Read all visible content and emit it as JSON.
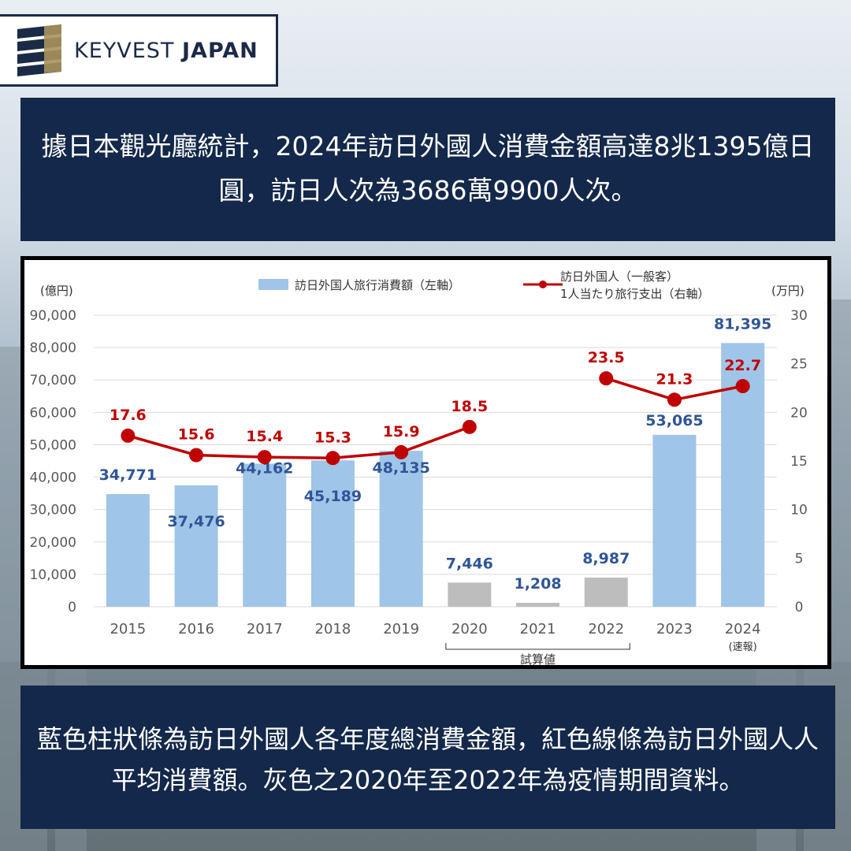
{
  "logo": {
    "brand_light": "KEYVEST ",
    "brand_bold": "JAPAN"
  },
  "headline": "據日本觀光廳統計，2024年訪日外國人消費金額高達8兆1395億日圓，訪日人次為3686萬9900人次。",
  "footnote": "藍色柱狀條為訪日外國人各年度總消費金額，紅色線條為訪日外國人人平均消費額。灰色之2020年至2022年為疫情期間資料。",
  "colors": {
    "navy": "#13284a",
    "bar_blue": "#9fc5e8",
    "bar_gray": "#bdbdbd",
    "line_red": "#c00000",
    "label_blue": "#2f5597",
    "label_red": "#c00000"
  },
  "chart_data": {
    "type": "bar",
    "categories": [
      "2015",
      "2016",
      "2017",
      "2018",
      "2019",
      "2020",
      "2021",
      "2022",
      "2023",
      "2024"
    ],
    "category_sublabels": {
      "2024": "(速報)"
    },
    "bracket_label": "試算値",
    "bracket_range": [
      "2020",
      "2022"
    ],
    "left_axis_unit": "(億円)",
    "right_axis_unit": "(万円)",
    "ylim_left": [
      0,
      90000
    ],
    "yticks_left": [
      "0",
      "10,000",
      "20,000",
      "30,000",
      "40,000",
      "50,000",
      "60,000",
      "70,000",
      "80,000",
      "90,000"
    ],
    "ylim_right": [
      0,
      30
    ],
    "yticks_right": [
      "0",
      "5",
      "10",
      "15",
      "20",
      "25",
      "30"
    ],
    "grid": true,
    "legend_position": "top",
    "series": [
      {
        "name": "訪日外国人旅行消費額（左軸）",
        "kind": "bar",
        "axis": "left",
        "values": [
          34771,
          37476,
          44162,
          45189,
          48135,
          7446,
          1208,
          8987,
          53065,
          81395
        ],
        "value_labels": [
          "34,771",
          "37,476",
          "44,162",
          "45,189",
          "48,135",
          "7,446",
          "1,208",
          "8,987",
          "53,065",
          "81,395"
        ],
        "gray_categories": [
          "2020",
          "2021",
          "2022"
        ]
      },
      {
        "name_line1": "訪日外国人（一般客）",
        "name_line2": "1人当たり旅行支出（右軸）",
        "kind": "line",
        "axis": "right",
        "segments": [
          {
            "x": [
              "2015",
              "2016",
              "2017",
              "2018",
              "2019",
              "2020"
            ],
            "values": [
              17.6,
              15.6,
              15.4,
              15.3,
              15.9,
              18.5
            ]
          },
          {
            "x": [
              "2022",
              "2023",
              "2024"
            ],
            "values": [
              23.5,
              21.3,
              22.7
            ]
          }
        ],
        "value_labels": {
          "2015": "17.6",
          "2016": "15.6",
          "2017": "15.4",
          "2018": "15.3",
          "2019": "15.9",
          "2020": "18.5",
          "2022": "23.5",
          "2023": "21.3",
          "2024": "22.7"
        }
      }
    ]
  }
}
